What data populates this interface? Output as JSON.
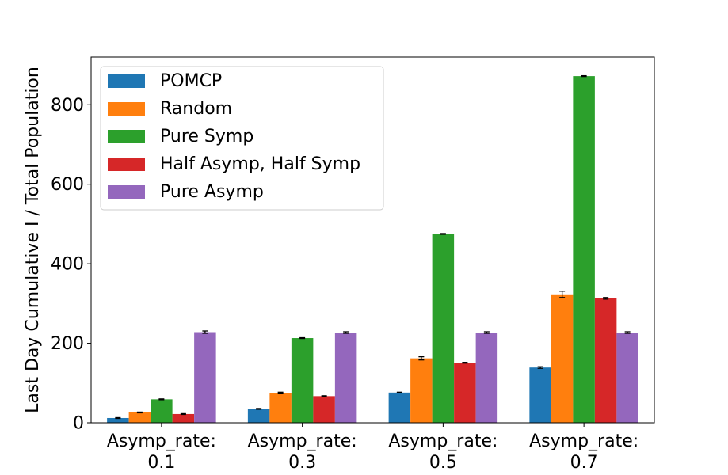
{
  "chart_data": {
    "type": "bar",
    "title": "",
    "xlabel": "",
    "ylabel": "Last Day Cumulative I / Total Population",
    "ylim": [
      0,
      920
    ],
    "yticks": [
      0,
      200,
      400,
      600,
      800
    ],
    "grid": false,
    "legend_position": "top-left",
    "categories": [
      [
        "Asymp_rate:",
        "0.1"
      ],
      [
        "Asymp_rate:",
        "0.3"
      ],
      [
        "Asymp_rate:",
        "0.5"
      ],
      [
        "Asymp_rate:",
        "0.7"
      ]
    ],
    "series": [
      {
        "name": "POMCP",
        "color": "#1f77b4",
        "values": [
          12,
          35,
          76,
          139
        ],
        "errors": [
          1,
          1,
          1,
          2
        ]
      },
      {
        "name": "Random",
        "color": "#ff7f0e",
        "values": [
          26,
          75,
          162,
          323
        ],
        "errors": [
          1,
          2,
          4,
          8
        ]
      },
      {
        "name": "Pure Symp",
        "color": "#2ca02c",
        "values": [
          59,
          213,
          475,
          872
        ],
        "errors": [
          1,
          1,
          1,
          1
        ]
      },
      {
        "name": "Half Asymp, Half Symp",
        "color": "#d62728",
        "values": [
          22,
          67,
          151,
          313
        ],
        "errors": [
          1,
          1,
          1,
          2
        ]
      },
      {
        "name": "Pure Asymp",
        "color": "#9467bd",
        "values": [
          228,
          227,
          227,
          227
        ],
        "errors": [
          3,
          2,
          2,
          2
        ]
      }
    ]
  }
}
